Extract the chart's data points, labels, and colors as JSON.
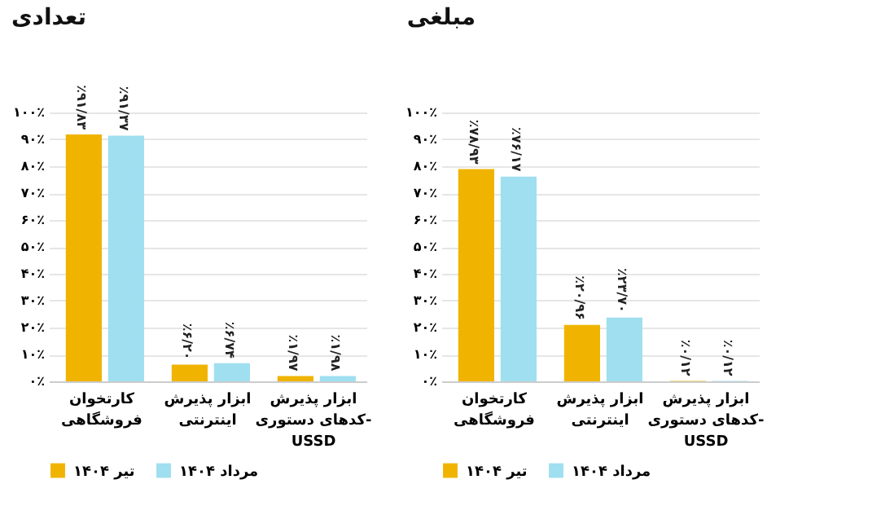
{
  "chart_data": [
    {
      "type": "bar",
      "title": "مبلغی",
      "categories": [
        "کارتخوان فروشگاهی",
        "ابزار پذیرش اینترنتی",
        "ابزار پذیرش کدهای دستوری- USSD"
      ],
      "series": [
        {
          "name": "تیر ۱۴۰۴",
          "color": "#f0b400",
          "values": [
            78.93,
            20.96,
            0.12
          ],
          "value_labels": [
            "٪۷۸/۹۳",
            "٪۲۰/۹۶",
            "٪۰/۱۲"
          ]
        },
        {
          "name": "مرداد ۱۴۰۴",
          "color": "#9fdff0",
          "values": [
            76.17,
            23.7,
            0.12
          ],
          "value_labels": [
            "٪۷۶/۱۷",
            "٪۲۳/۷۰",
            "٪۰/۱۲"
          ]
        }
      ],
      "ylim": [
        0,
        100
      ],
      "yticks": [
        {
          "value": 0,
          "label": "۰٪"
        },
        {
          "value": 10,
          "label": "۱۰٪"
        },
        {
          "value": 20,
          "label": "۲۰٪"
        },
        {
          "value": 30,
          "label": "۳۰٪"
        },
        {
          "value": 40,
          "label": "۴۰٪"
        },
        {
          "value": 50,
          "label": "۵۰٪"
        },
        {
          "value": 60,
          "label": "۶۰٪"
        },
        {
          "value": 70,
          "label": "۷۰٪"
        },
        {
          "value": 80,
          "label": "۸۰٪"
        },
        {
          "value": 90,
          "label": "۹۰٪"
        },
        {
          "value": 100,
          "label": "۱۰۰٪"
        }
      ],
      "grid": "y",
      "legend": "bottom"
    },
    {
      "type": "bar",
      "title": "تعدادی",
      "categories": [
        "کارتخوان فروشگاهی",
        "ابزار پذیرش اینترنتی",
        "ابزار پذیرش کدهای دستوری- USSD"
      ],
      "series": [
        {
          "name": "تیر ۱۴۰۴",
          "color": "#f0b400",
          "values": [
            91.83,
            6.2,
            1.97
          ],
          "value_labels": [
            "٪۹۱/۸۳",
            "٪۶/۲۰",
            "٪۱/۹۷"
          ]
        },
        {
          "name": "مرداد ۱۴۰۴",
          "color": "#9fdff0",
          "values": [
            91.37,
            6.74,
            1.98
          ],
          "value_labels": [
            "٪۹۱/۳۷",
            "٪۶/۷۴",
            "٪۱/۹۸"
          ]
        }
      ],
      "ylim": [
        0,
        100
      ],
      "yticks": [
        {
          "value": 0,
          "label": "۰٪"
        },
        {
          "value": 10,
          "label": "۱۰٪"
        },
        {
          "value": 20,
          "label": "۲۰٪"
        },
        {
          "value": 30,
          "label": "۳۰٪"
        },
        {
          "value": 40,
          "label": "۴۰٪"
        },
        {
          "value": 50,
          "label": "۵۰٪"
        },
        {
          "value": 60,
          "label": "۶۰٪"
        },
        {
          "value": 70,
          "label": "۷۰٪"
        },
        {
          "value": 80,
          "label": "۸۰٪"
        },
        {
          "value": 90,
          "label": "۹۰٪"
        },
        {
          "value": 100,
          "label": "۱۰۰٪"
        }
      ],
      "grid": "y",
      "legend": "bottom"
    }
  ]
}
